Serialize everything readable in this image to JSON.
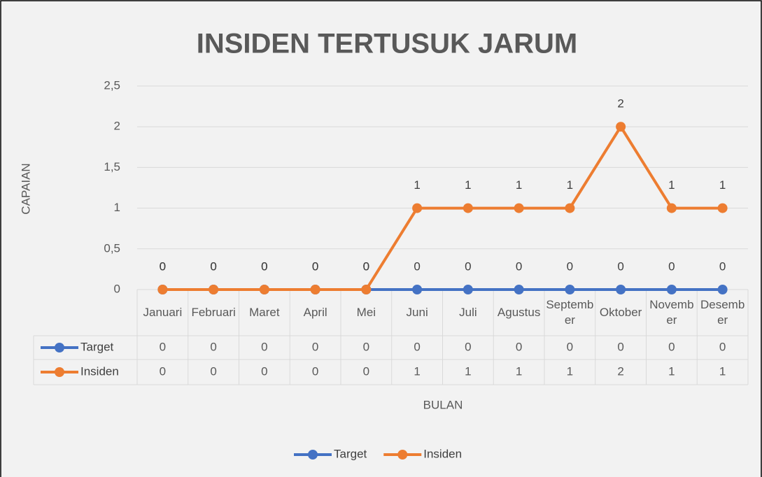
{
  "chart_data": {
    "type": "line",
    "title": "INSIDEN TERTUSUK JARUM",
    "x_label": "BULAN",
    "y_label": "CAPAIAN",
    "categories": [
      "Januari",
      "Februari",
      "Maret",
      "April",
      "Mei",
      "Juni",
      "Juli",
      "Agustus",
      "September",
      "Oktober",
      "November",
      "Desember"
    ],
    "series": [
      {
        "name": "Target",
        "color": "#4472c4",
        "values": [
          0,
          0,
          0,
          0,
          0,
          0,
          0,
          0,
          0,
          0,
          0,
          0
        ]
      },
      {
        "name": "Insiden",
        "color": "#ed7d31",
        "values": [
          0,
          0,
          0,
          0,
          0,
          1,
          1,
          1,
          1,
          2,
          1,
          1
        ]
      }
    ],
    "ylim": [
      0,
      2.5
    ],
    "yticks": [
      0,
      {
        "value": 0.5,
        "label": "0,5"
      },
      1,
      {
        "value": 1.5,
        "label": "1,5"
      },
      2,
      {
        "value": 2.5,
        "label": "2,5"
      }
    ],
    "grid": true,
    "legend": "bottom",
    "data_table": true
  }
}
